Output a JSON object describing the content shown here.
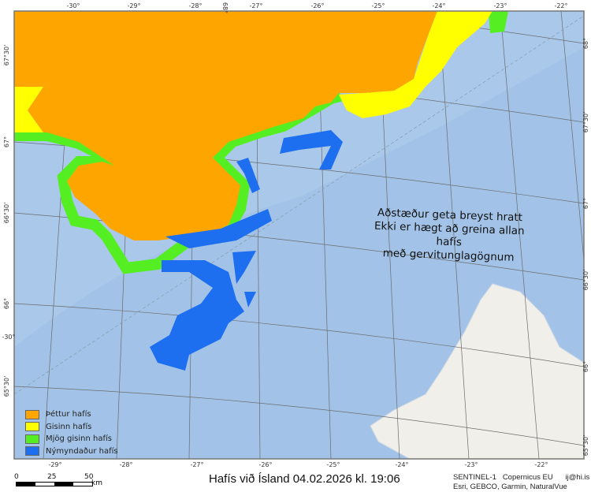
{
  "title": "Hafís við Ísland 04.02.2026 kl. 19:06",
  "note_lines": [
    "Aðstæður geta breyst hratt",
    "Ekki er hægt að greina allan hafís",
    "með gervitunglagögnum"
  ],
  "legend": [
    {
      "label": "Þéttur hafís",
      "color": "#FFA500"
    },
    {
      "label": "Gisinn hafís",
      "color": "#FFFF00"
    },
    {
      "label": "Mjög gisinn hafís",
      "color": "#55EE22"
    },
    {
      "label": "Nýmyndaður hafís",
      "color": "#1E6FF0"
    }
  ],
  "credits": {
    "line1": "SENTINEL-1   Copernicus EU      ij@hi.is",
    "line2": "Esri, GEBCO, Garmin, NaturalVue"
  },
  "scale": {
    "labels": [
      "0",
      "25",
      "50"
    ],
    "unit": "km"
  },
  "top_ticks": [
    "-30°",
    "-29°",
    "-28°",
    "68°",
    "-27°",
    "-26°",
    "-25°",
    "-24°",
    "-23°",
    "-22°"
  ],
  "bottom_ticks": [
    "-29°",
    "-28°",
    "-27°",
    "-26°",
    "-25°",
    "-24°",
    "-23°",
    "-22°"
  ],
  "left_ticks": [
    "67°30'",
    "67°",
    "66°30'",
    "66°",
    "-30°",
    "65°30'"
  ],
  "right_ticks": [
    "68°",
    "67°30'",
    "67°",
    "66°30'",
    "66°",
    "65°30'"
  ],
  "colors": {
    "sea": "#A9C8EA",
    "land": "#F1EFEA",
    "grid": "#6b6b6b"
  }
}
